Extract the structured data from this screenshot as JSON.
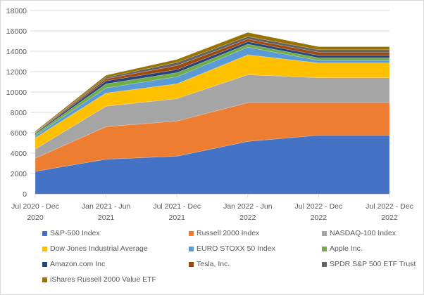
{
  "chart_data": {
    "type": "area",
    "stacked": true,
    "title": "",
    "xlabel": "",
    "ylabel": "",
    "ylim": [
      0,
      18000
    ],
    "yticks": [
      0,
      2000,
      4000,
      6000,
      8000,
      10000,
      12000,
      14000,
      16000,
      18000
    ],
    "grid": true,
    "legend_position": "bottom",
    "categories": [
      [
        "Jul 2020 - Dec",
        "2020"
      ],
      [
        "Jan 2021 - Jun",
        "2021"
      ],
      [
        "Jul 2021 - Dec",
        "2021"
      ],
      [
        "Jan 2022 - Jun",
        "2022"
      ],
      [
        "Jul 2022 - Dec",
        "2022"
      ],
      [
        "Jul 2022 - Dec",
        "2022"
      ]
    ],
    "series": [
      {
        "name": "S&P-500 Index",
        "color": "#4472c4",
        "values": [
          2200,
          3400,
          3700,
          5150,
          5750,
          5750
        ]
      },
      {
        "name": "Russell 2000 Index",
        "color": "#ed7d31",
        "values": [
          1300,
          3200,
          3450,
          3800,
          3200,
          3200
        ]
      },
      {
        "name": "NASDAQ-100 Index",
        "color": "#a5a5a5",
        "values": [
          900,
          2000,
          2200,
          2750,
          2450,
          2450
        ]
      },
      {
        "name": "Dow Jones Industrial Average",
        "color": "#ffc000",
        "values": [
          1100,
          1300,
          1450,
          1950,
          1450,
          1450
        ]
      },
      {
        "name": "EURO STOXX 50 Index",
        "color": "#5b9bd5",
        "values": [
          200,
          500,
          700,
          750,
          250,
          250
        ]
      },
      {
        "name": "Apple Inc.",
        "color": "#70ad47",
        "values": [
          150,
          400,
          400,
          300,
          250,
          250
        ]
      },
      {
        "name": "Amazon.com Inc",
        "color": "#264478",
        "values": [
          100,
          300,
          300,
          250,
          250,
          250
        ]
      },
      {
        "name": "Tesla, Inc.",
        "color": "#9e480e",
        "values": [
          50,
          200,
          400,
          250,
          300,
          300
        ]
      },
      {
        "name": "SPDR S&P 500 ETF Trust",
        "color": "#636363",
        "values": [
          50,
          150,
          300,
          250,
          250,
          250
        ]
      },
      {
        "name": "iShares Russell 2000 Value ETF",
        "color": "#997300",
        "values": [
          100,
          200,
          300,
          400,
          300,
          300
        ]
      }
    ]
  }
}
